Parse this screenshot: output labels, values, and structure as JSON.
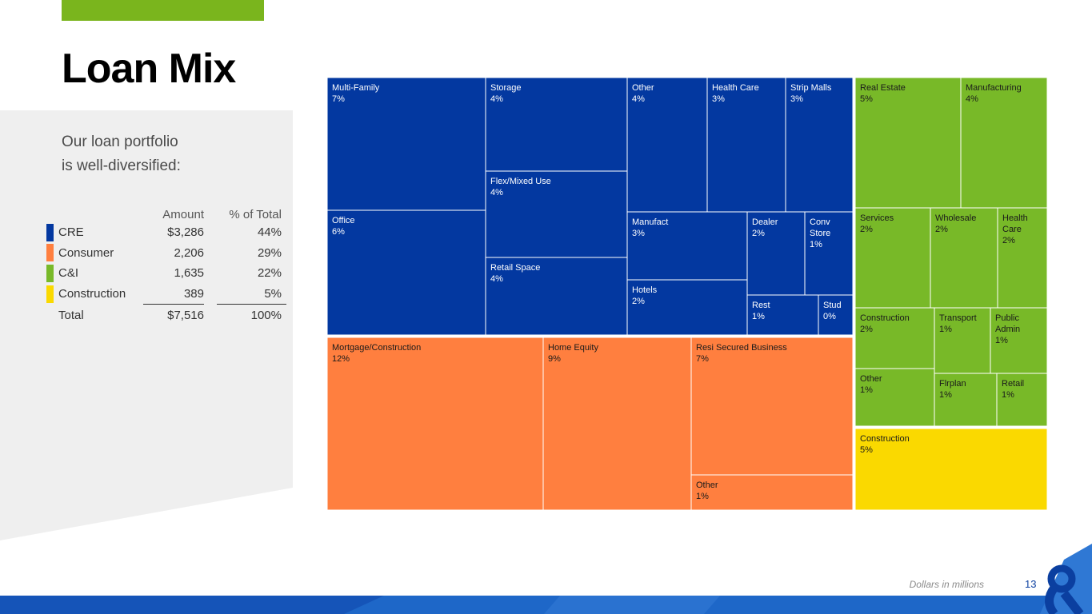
{
  "title": "Loan Mix",
  "intro": [
    "Our loan portfolio",
    "is well-diversified:"
  ],
  "colors": {
    "accent_green": "#7ab51d",
    "cre": "#0338a0",
    "consumer": "#ff7f3f",
    "ci": "#78b928",
    "construction": "#fad900",
    "light_panel": "#efefef",
    "footer_blue": "#1e67c8"
  },
  "summary_table": {
    "headers": {
      "amount": "Amount",
      "pct": "% of Total"
    },
    "rows": [
      {
        "label": "CRE",
        "amount": "$3,286",
        "pct": "44%",
        "color": "#0338a0"
      },
      {
        "label": "Consumer",
        "amount": "2,206",
        "pct": "29%",
        "color": "#ff7f3f"
      },
      {
        "label": "C&I",
        "amount": "1,635",
        "pct": "22%",
        "color": "#78b928"
      },
      {
        "label": "Construction",
        "amount": "389",
        "pct": "5%",
        "color": "#fad900"
      }
    ],
    "total": {
      "label": "Total",
      "amount": "$7,516",
      "pct": "100%"
    }
  },
  "chart_data": {
    "type": "treemap",
    "groups": [
      {
        "name": "CRE",
        "color": "#0338a0",
        "items": [
          {
            "label": "Multi-Family",
            "value": "7%"
          },
          {
            "label": "Office",
            "value": "6%"
          },
          {
            "label": "Storage",
            "value": "4%"
          },
          {
            "label": "Flex/Mixed Use",
            "value": "4%"
          },
          {
            "label": "Retail Space",
            "value": "4%"
          },
          {
            "label": "Other",
            "value": "4%"
          },
          {
            "label": "Health Care",
            "value": "3%"
          },
          {
            "label": "Strip Malls",
            "value": "3%"
          },
          {
            "label": "Manufact",
            "value": "3%"
          },
          {
            "label": "Dealer",
            "value": "2%"
          },
          {
            "label": "Conv Store",
            "value": "1%"
          },
          {
            "label": "Hotels",
            "value": "2%"
          },
          {
            "label": "Rest",
            "value": "1%"
          },
          {
            "label": "Stud",
            "value": "0%"
          }
        ]
      },
      {
        "name": "Consumer",
        "color": "#ff7f3f",
        "items": [
          {
            "label": "Mortgage/Construction",
            "value": "12%"
          },
          {
            "label": "Home Equity",
            "value": "9%"
          },
          {
            "label": "Resi Secured Business",
            "value": "7%"
          },
          {
            "label": "Other",
            "value": "1%"
          }
        ]
      },
      {
        "name": "C&I",
        "color": "#78b928",
        "items": [
          {
            "label": "Real Estate",
            "value": "5%"
          },
          {
            "label": "Manufacturing",
            "value": "4%"
          },
          {
            "label": "Services",
            "value": "2%"
          },
          {
            "label": "Wholesale",
            "value": "2%"
          },
          {
            "label": "Health Care",
            "value": "2%"
          },
          {
            "label": "Construction",
            "value": "2%"
          },
          {
            "label": "Transport",
            "value": "1%"
          },
          {
            "label": "Public Admin",
            "value": "1%"
          },
          {
            "label": "Other",
            "value": "1%"
          },
          {
            "label": "Flrplan",
            "value": "1%"
          },
          {
            "label": "Retail",
            "value": "1%"
          }
        ]
      },
      {
        "name": "Construction",
        "color": "#fad900",
        "items": [
          {
            "label": "Construction",
            "value": "5%"
          }
        ]
      }
    ]
  },
  "footer": {
    "note": "Dollars in millions",
    "page_number": "13"
  }
}
